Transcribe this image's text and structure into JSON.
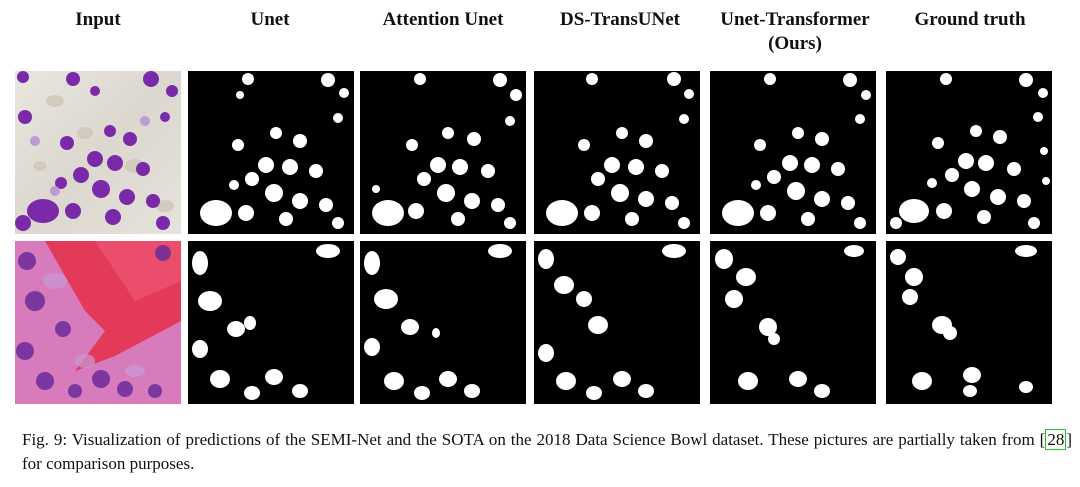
{
  "figure": {
    "columns": [
      {
        "label": "Input"
      },
      {
        "label": "Unet"
      },
      {
        "label": "Attention Unet"
      },
      {
        "label": "DS-TransUNet"
      },
      {
        "label": "Unet-Transformer",
        "label2": "(Ours)"
      },
      {
        "label": "Ground truth"
      }
    ],
    "caption": {
      "prefix": "Fig. 9: Visualization of predictions of the SEMI-Net and the SOTA on the 2018 Data Science Bowl dataset. These pictures are partially taken from [",
      "cite": "28",
      "suffix": "] for comparison purposes."
    }
  },
  "colors": {
    "mask_background": "#000000",
    "mask_foreground": "#ffffff",
    "nuclei_purple": "#7b2fb0",
    "tissue_pink": "#d85fa8",
    "tissue_red": "#e23a5c",
    "citation_box": "#22c322"
  }
}
